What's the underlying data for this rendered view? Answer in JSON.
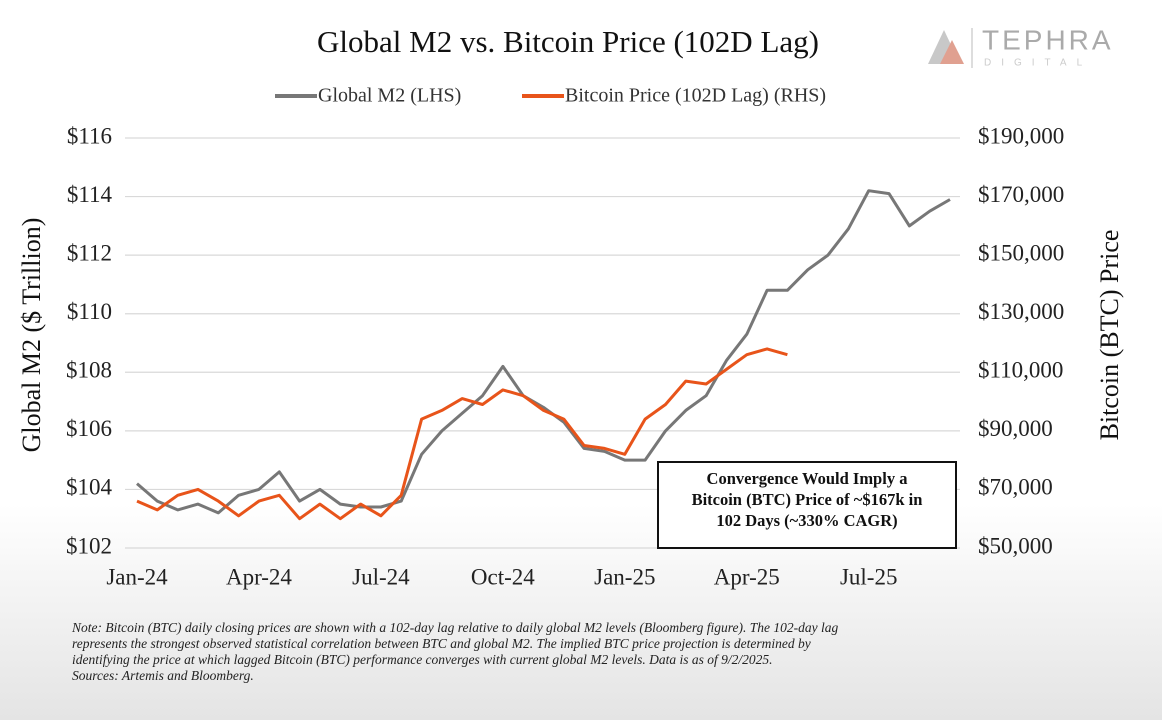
{
  "header": {
    "logo": "TEPHRA",
    "logo_sub": "DIGITAL"
  },
  "chart_data": {
    "type": "line",
    "title": "Global M2 vs. Bitcoin Price (102D Lag)",
    "y_label": "Global M2 ($ Trillion)",
    "y2_label": "Bitcoin (BTC) Price",
    "categories": [
      "Jan-24",
      null,
      null,
      null,
      null,
      null,
      "Apr-24",
      null,
      null,
      null,
      null,
      null,
      "Jul-24",
      null,
      null,
      null,
      null,
      null,
      "Oct-24",
      null,
      null,
      null,
      null,
      null,
      "Jan-25",
      null,
      null,
      null,
      null,
      null,
      "Apr-25",
      null,
      null,
      null,
      null,
      null,
      "Jul-25",
      null,
      null,
      null,
      null
    ],
    "series": [
      {
        "name": "Global M2 (LHS)",
        "color": "#777777",
        "axis": "y",
        "values": [
          104.2,
          103.6,
          103.3,
          103.5,
          103.2,
          103.8,
          104.0,
          104.6,
          103.6,
          104.0,
          103.5,
          103.4,
          103.4,
          103.6,
          105.2,
          106.0,
          106.6,
          107.2,
          108.2,
          107.2,
          106.8,
          106.3,
          105.4,
          105.3,
          105.0,
          105.0,
          106.0,
          106.7,
          107.2,
          108.4,
          109.3,
          110.8,
          110.8,
          111.5,
          112.0,
          112.9,
          114.2,
          114.1,
          113.0,
          113.5,
          113.9
        ]
      },
      {
        "name": "Bitcoin Price (102D Lag) (RHS)",
        "color": "#e8541a",
        "axis": "y2",
        "values": [
          66000,
          63000,
          68000,
          70000,
          66000,
          61000,
          66000,
          68000,
          60000,
          65000,
          60000,
          65000,
          61000,
          68000,
          94000,
          97000,
          101000,
          99000,
          104000,
          102000,
          97000,
          94000,
          85000,
          84000,
          82000,
          94000,
          99000,
          107000,
          106000,
          111000,
          116000,
          118000,
          116000,
          null,
          null,
          null,
          null,
          null,
          null,
          null,
          null
        ]
      }
    ],
    "ylim": [
      102,
      116
    ],
    "yticks": [
      {
        "value": 102,
        "label": "$102"
      },
      {
        "value": 104,
        "label": "$104"
      },
      {
        "value": 106,
        "label": "$106"
      },
      {
        "value": 108,
        "label": "$108"
      },
      {
        "value": 110,
        "label": "$110"
      },
      {
        "value": 112,
        "label": "$112"
      },
      {
        "value": 114,
        "label": "$114"
      },
      {
        "value": 116,
        "label": "$116"
      }
    ],
    "y2lim": [
      50000,
      190000
    ],
    "y2ticks": [
      {
        "value": 50000,
        "label": "$50,000"
      },
      {
        "value": 70000,
        "label": "$70,000"
      },
      {
        "value": 90000,
        "label": "$90,000"
      },
      {
        "value": 110000,
        "label": "$110,000"
      },
      {
        "value": 130000,
        "label": "$130,000"
      },
      {
        "value": 150000,
        "label": "$150,000"
      },
      {
        "value": 170000,
        "label": "$170,000"
      },
      {
        "value": 190000,
        "label": "$190,000"
      }
    ],
    "grid": true,
    "annotation": [
      "Convergence Would Imply a",
      "Bitcoin (BTC) Price of ~$167k in",
      "102 Days (~330% CAGR)"
    ],
    "note": [
      "Note: Bitcoin (BTC) daily closing prices are shown with a 102-day lag relative to daily global M2 levels (Bloomberg figure). The 102-day lag",
      "represents the strongest observed statistical correlation between BTC and global M2. The implied BTC price projection is determined by",
      "identifying the price at which lagged Bitcoin (BTC) performance converges with current global M2 levels. Data is as of 9/2/2025.",
      "Sources: Artemis and Bloomberg."
    ]
  }
}
